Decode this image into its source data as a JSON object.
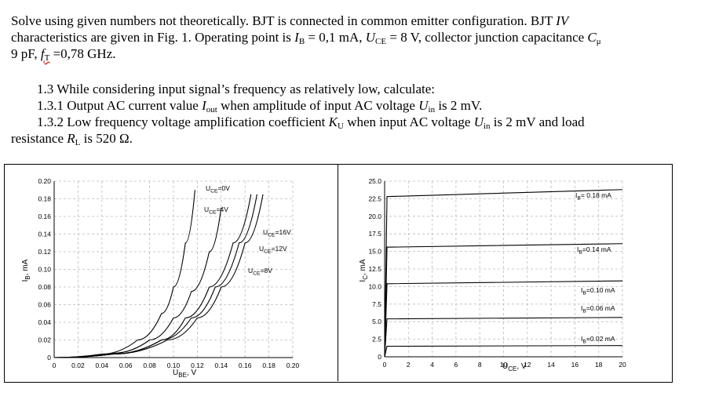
{
  "problem": {
    "line1": "Solve using given numbers not theoretically. BJT is connected in common emitter configuration. BJT ",
    "iv": "IV",
    "line2a": "characteristics are given in Fig. 1. Operating point is ",
    "ib_sym": "I",
    "ib_sub": "B",
    "ib_val": " = 0,1 mA, ",
    "uce_sym": "U",
    "uce_sub": "CE",
    "uce_val": " = 8 V, collector junction capacitance ",
    "cmu_sym": "C",
    "cmu_sub": "μ",
    "line3a": "9 pF, ",
    "ft_sym": "f",
    "ft_sub": "T",
    "ft_val": " =0,78 GHz."
  },
  "tasks": {
    "t13": "1.3 While considering input signal’s frequency as relatively low, calculate:",
    "t131a": "1.3.1 Output AC current value ",
    "iout_sym": "I",
    "iout_sub": "out",
    "t131b": " when amplitude of input AC voltage ",
    "uin_sym": "U",
    "uin_sub": "in",
    "t131c": " is 2 mV.",
    "t132a": "1.3.2 Low frequency voltage amplification coefficient ",
    "ku_sym": "K",
    "ku_sub": "U",
    "t132b": " when input AC voltage ",
    "t132c": " is 2 mV and load",
    "line_rl_a": "resistance ",
    "rl_sym": "R",
    "rl_sub": "L",
    "line_rl_b": " is 520 Ω."
  },
  "chart_data": [
    {
      "type": "line",
      "xlabel": "U",
      "xlabel_sub": "BE",
      "xlabel_unit": ", V",
      "ylabel": "I",
      "ylabel_sub": "B",
      "ylabel_unit": ", mA",
      "x_ticks": [
        "0",
        "0.02",
        "0.04",
        "0.06",
        "0.08",
        "0.10",
        "0.12",
        "0.14",
        "0.16",
        "0.18",
        "0.20"
      ],
      "y_ticks": [
        "0",
        "0.02",
        "0.04",
        "0.06",
        "0.08",
        "0.10",
        "0.12",
        "0.14",
        "0.16",
        "0.18",
        "0.20"
      ],
      "xlim": [
        0,
        0.2
      ],
      "ylim": [
        0,
        0.2
      ],
      "grid": true,
      "series": [
        {
          "name": "U_CE=0V",
          "label": "U",
          "label_sub": "CE",
          "label_val": "=0V",
          "x": [
            0,
            0.04,
            0.07,
            0.09,
            0.1,
            0.11,
            0.118
          ],
          "y": [
            0,
            0.004,
            0.02,
            0.05,
            0.08,
            0.13,
            0.19
          ]
        },
        {
          "name": "U_CE=4V",
          "label": "U",
          "label_sub": "CE",
          "label_val": "=4V",
          "x": [
            0,
            0.05,
            0.08,
            0.1,
            0.115,
            0.13,
            0.14
          ],
          "y": [
            0,
            0.005,
            0.02,
            0.045,
            0.075,
            0.12,
            0.17
          ]
        },
        {
          "name": "U_CE=8V",
          "label": "U",
          "label_sub": "CE",
          "label_val": "=8V",
          "x": [
            0,
            0.05,
            0.09,
            0.11,
            0.13,
            0.15,
            0.165
          ],
          "y": [
            0,
            0.004,
            0.02,
            0.045,
            0.08,
            0.13,
            0.185
          ]
        },
        {
          "name": "U_CE=12V",
          "label": "U",
          "label_sub": "CE",
          "label_val": "=12V",
          "x": [
            0,
            0.05,
            0.09,
            0.115,
            0.135,
            0.155,
            0.17
          ],
          "y": [
            0,
            0.004,
            0.02,
            0.045,
            0.08,
            0.13,
            0.185
          ]
        },
        {
          "name": "U_CE=16V",
          "label": "U",
          "label_sub": "CE",
          "label_val": "=16V",
          "x": [
            0,
            0.05,
            0.095,
            0.12,
            0.14,
            0.16,
            0.175
          ],
          "y": [
            0,
            0.004,
            0.02,
            0.045,
            0.08,
            0.13,
            0.185
          ]
        }
      ]
    },
    {
      "type": "line",
      "xlabel": "U",
      "xlabel_sub": "CE",
      "xlabel_unit": ", V",
      "ylabel": "I",
      "ylabel_sub": "C",
      "ylabel_unit": ", mA",
      "x_ticks": [
        "0",
        "2",
        "4",
        "6",
        "8",
        "10",
        "12",
        "14",
        "16",
        "18",
        "20"
      ],
      "y_ticks": [
        "0",
        "2.5",
        "5.0",
        "7.5",
        "10.0",
        "12.5",
        "15.0",
        "17.5",
        "20.0",
        "22.5",
        "25.0"
      ],
      "xlim": [
        0,
        20
      ],
      "ylim": [
        0,
        25
      ],
      "grid": true,
      "series": [
        {
          "name": "I_B=0.02 mA",
          "label": "I",
          "label_sub": "B",
          "label_val": "=0.02 mA",
          "x": [
            0,
            0.2,
            20
          ],
          "y": [
            0,
            1.5,
            1.6
          ]
        },
        {
          "name": "I_B=0.06 mA",
          "label": "I",
          "label_sub": "B",
          "label_val": "=0.06 mA",
          "x": [
            0,
            0.2,
            20
          ],
          "y": [
            0,
            5.4,
            5.6
          ]
        },
        {
          "name": "I_B=0.10 mA",
          "label": "I",
          "label_sub": "B",
          "label_val": "=0.10 mA",
          "x": [
            0,
            0.2,
            20
          ],
          "y": [
            0,
            10.4,
            10.8
          ]
        },
        {
          "name": "I_B=0.14 mA",
          "label": "I",
          "label_sub": "B",
          "label_val": "=0.14 mA",
          "x": [
            0,
            0.2,
            20
          ],
          "y": [
            0,
            15.6,
            16.1
          ]
        },
        {
          "name": "I_B=0.18 mA",
          "label": "I",
          "label_sub": "B",
          "label_val": "= 0.18 mA",
          "x": [
            0,
            0.2,
            20
          ],
          "y": [
            0,
            22.8,
            23.8
          ]
        }
      ]
    }
  ]
}
